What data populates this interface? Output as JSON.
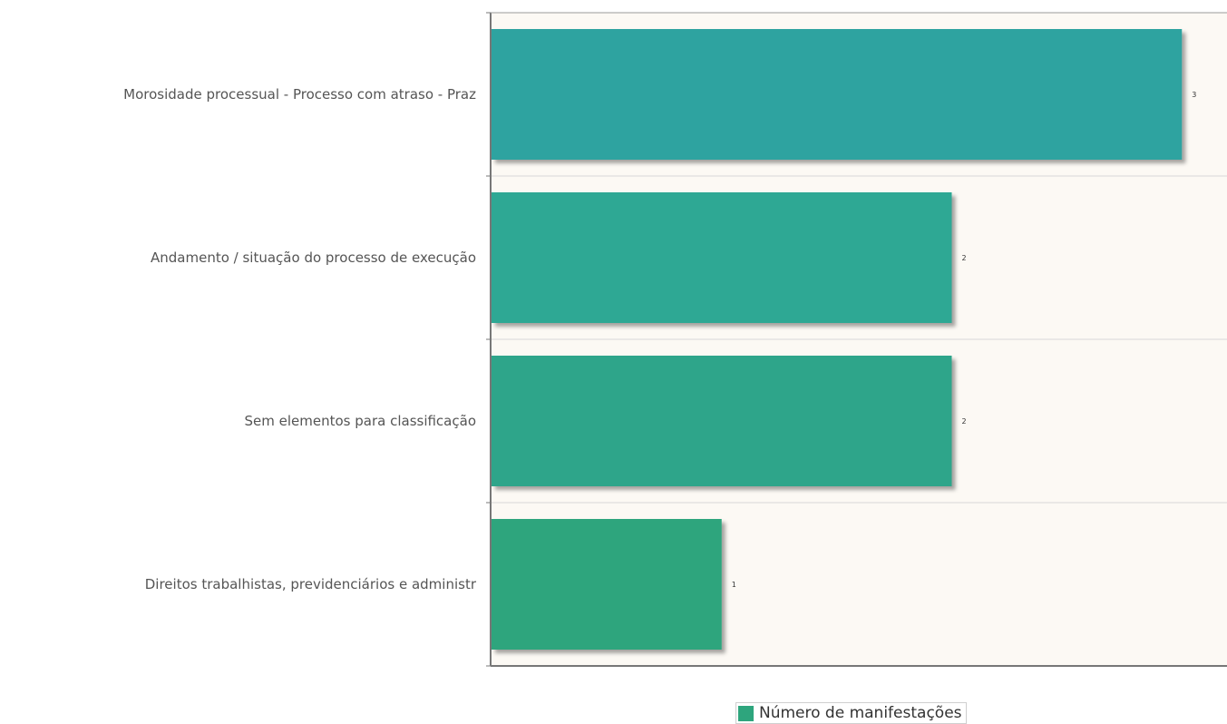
{
  "chart_data": {
    "type": "bar",
    "orientation": "horizontal",
    "categories": [
      "Morosidade processual - Processo com atraso - Praz",
      "Andamento / situação do processo de execução",
      "Sem elementos para classificação",
      "Direitos trabalhistas, previdenciários e administr"
    ],
    "series": [
      {
        "name": "Número de manifestações",
        "values": [
          3,
          2,
          2,
          1
        ]
      }
    ],
    "value_labels": [
      "3",
      "2",
      "2",
      "1"
    ],
    "title": "",
    "xlabel": "",
    "ylabel": "",
    "xlim": [
      0,
      3.2
    ],
    "grid": true,
    "legend_placement": "bottom",
    "colors": {
      "bar_colors": [
        "#2ea3a0",
        "#2ea894",
        "#2ea58a",
        "#2ea57d"
      ],
      "legend_swatch": "#2ea57d",
      "plot_background": "#fcf9f4",
      "axis": "#777777",
      "grid": "#d8d8d8"
    }
  }
}
